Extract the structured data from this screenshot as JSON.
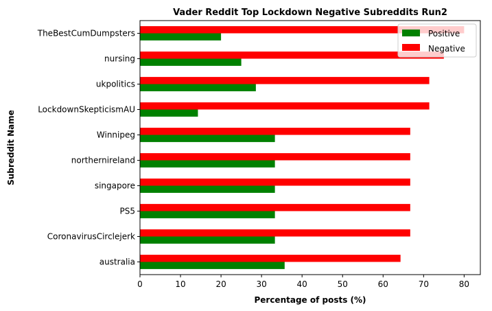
{
  "chart_data": {
    "type": "bar",
    "orientation": "horizontal",
    "title": "Vader Reddit Top Lockdown Negative Subreddits Run2",
    "xlabel": "Percentage of posts (%)",
    "ylabel": "Subreddit Name",
    "xlim": [
      0,
      84
    ],
    "xticks": [
      "0",
      "10",
      "20",
      "30",
      "40",
      "50",
      "60",
      "70",
      "80"
    ],
    "categories": [
      "TheBestCumDumpsters",
      "nursing",
      "ukpolitics",
      "LockdownSkepticismAU",
      "Winnipeg",
      "northernireland",
      "singapore",
      "PS5",
      "CoronavirusCirclejerk",
      "australia"
    ],
    "series": [
      {
        "name": "Positive",
        "color": "#008000",
        "values": [
          20,
          25,
          28.6,
          14.3,
          33.3,
          33.3,
          33.3,
          33.3,
          33.3,
          35.7
        ]
      },
      {
        "name": "Negative",
        "color": "#ff0000",
        "values": [
          80,
          75,
          71.4,
          71.4,
          66.7,
          66.7,
          66.7,
          66.7,
          66.7,
          64.3
        ]
      }
    ],
    "legend_position": "top-right",
    "grid": false
  }
}
